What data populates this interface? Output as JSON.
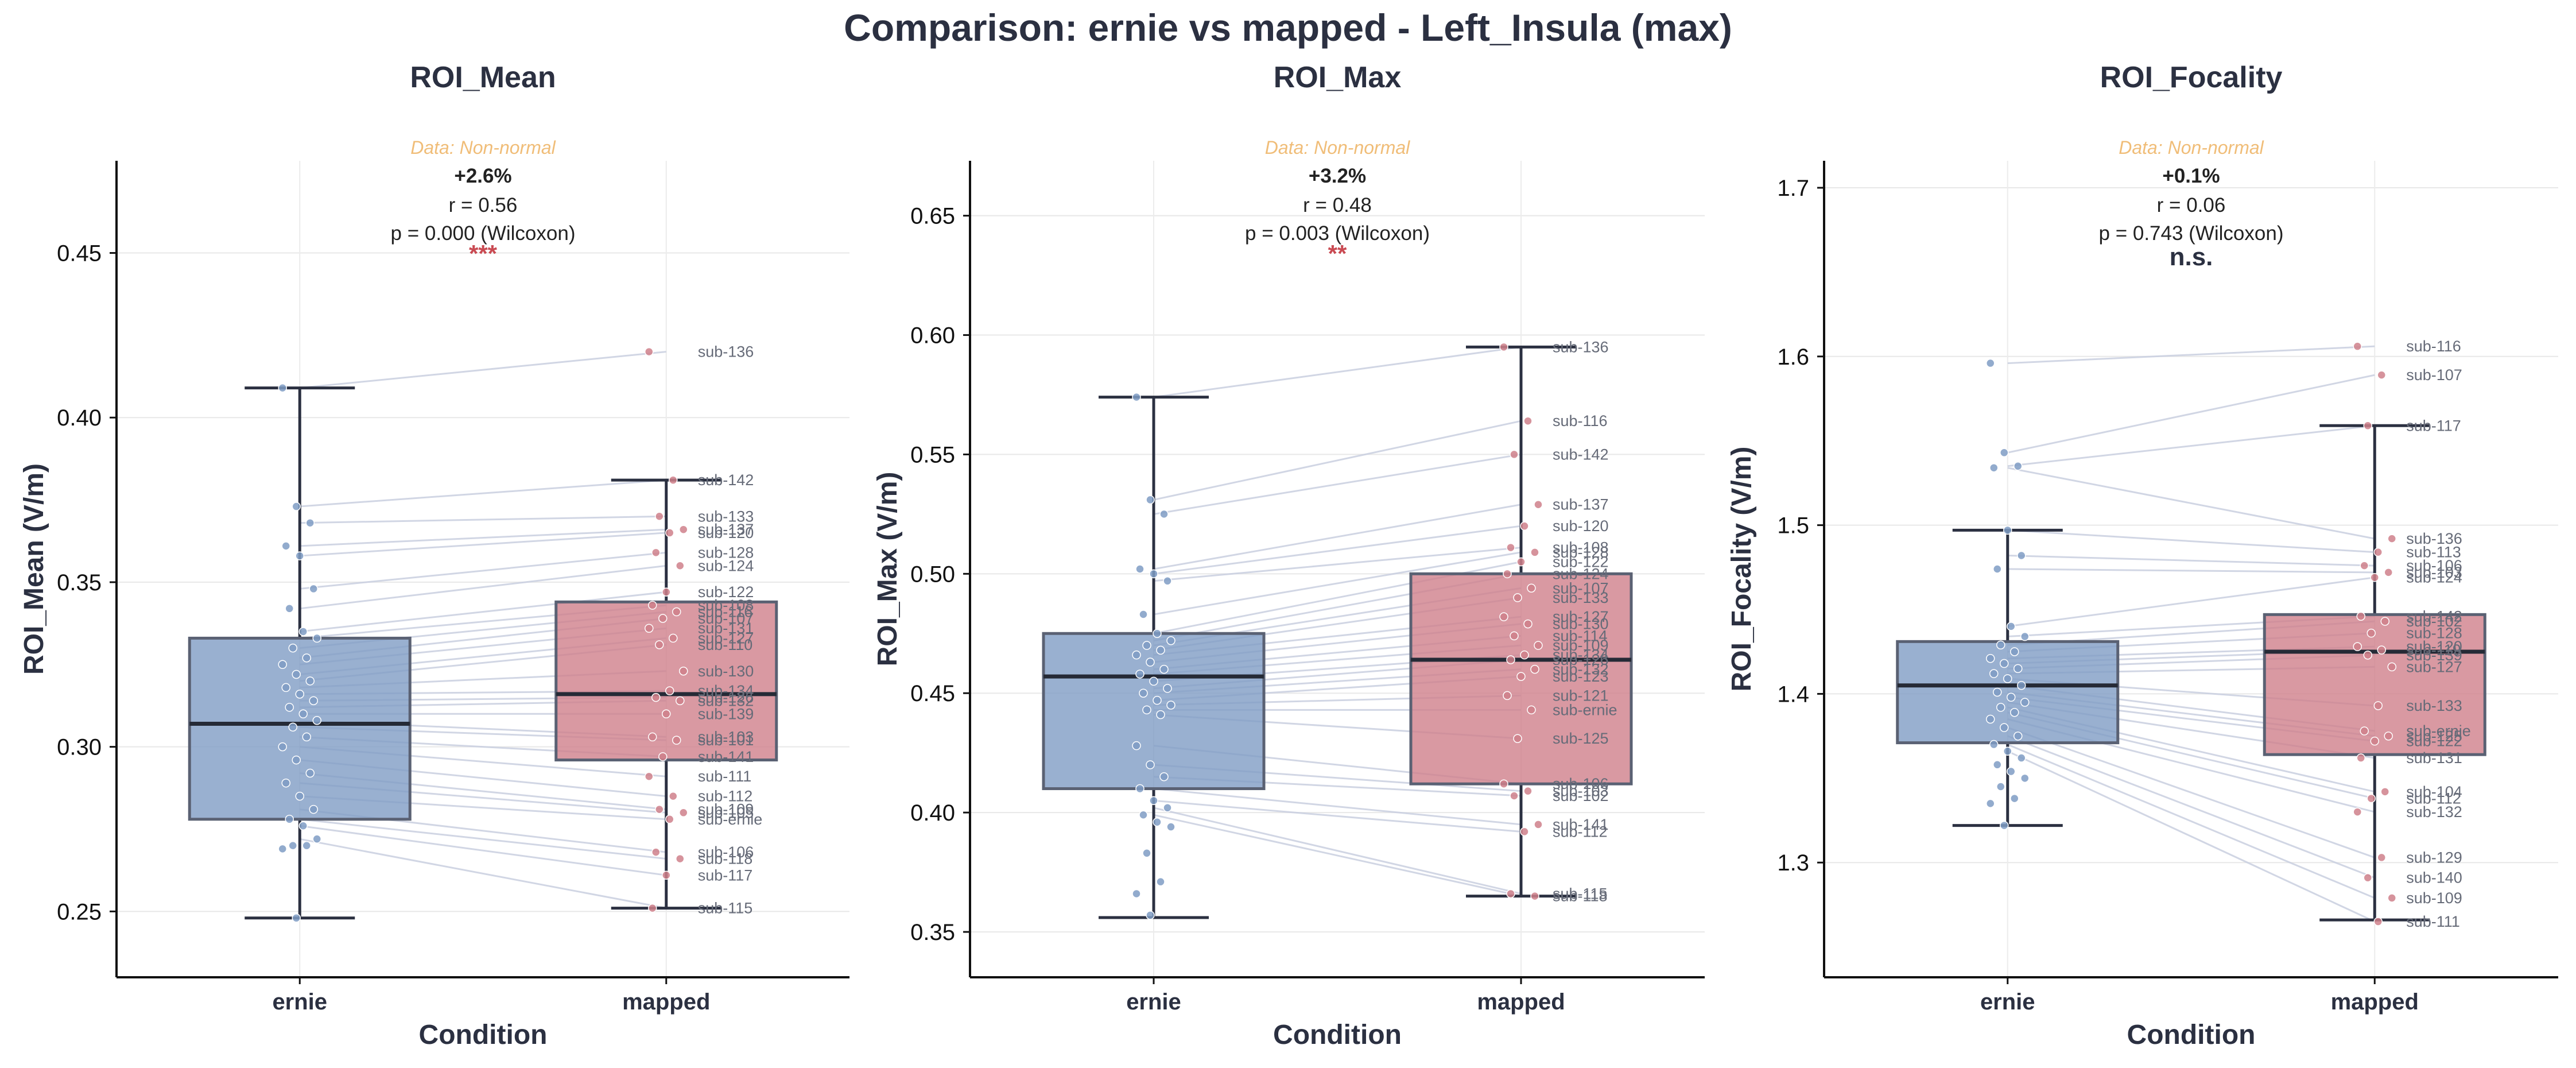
{
  "figure": {
    "title": "Comparison: ernie vs mapped - Left_Insula (max)"
  },
  "style": {
    "ernie_color": "#7f9cc4",
    "mapped_color": "#cf808b",
    "pair_line_color": "#c9cfe0",
    "normality_color": "#f0bd78",
    "significance_color": "#c94a52",
    "text_color": "#2b3041"
  },
  "chart_data": [
    {
      "type": "box",
      "title": "ROI_Mean",
      "xlabel": "Condition",
      "ylabel": "ROI_Mean (V/m)",
      "categories": [
        "ernie",
        "mapped"
      ],
      "ylim": [
        0.23,
        0.478
      ],
      "yticks": [
        0.25,
        0.3,
        0.35,
        0.4,
        0.45
      ],
      "ytick_labels": [
        "0.25",
        "0.30",
        "0.35",
        "0.40",
        "0.45"
      ],
      "grid": true,
      "stats": {
        "normality": "Data: Non-normal",
        "change": "+2.6%",
        "effect": "r = 0.56",
        "test": "p = 0.000 (Wilcoxon)",
        "significance": "***"
      },
      "boxes": [
        {
          "q1": 0.278,
          "median": 0.307,
          "q3": 0.333,
          "whisker_low": 0.248,
          "whisker_high": 0.409
        },
        {
          "q1": 0.296,
          "median": 0.316,
          "q3": 0.344,
          "whisker_low": 0.251,
          "whisker_high": 0.381
        }
      ],
      "ernie_values": [
        0.409,
        0.373,
        0.368,
        0.361,
        0.358,
        0.348,
        0.342,
        0.335,
        0.333,
        0.33,
        0.327,
        0.325,
        0.322,
        0.32,
        0.318,
        0.316,
        0.314,
        0.312,
        0.31,
        0.308,
        0.306,
        0.303,
        0.3,
        0.296,
        0.292,
        0.289,
        0.285,
        0.281,
        0.278,
        0.276,
        0.272,
        0.27,
        0.27,
        0.269,
        0.248
      ],
      "mapped_labels": [
        "sub-136",
        "sub-142",
        "sub-133",
        "sub-137",
        "sub-120",
        "sub-128",
        "sub-124",
        "sub-122",
        "sub-108",
        "sub-116",
        "sub-107",
        "sub-131",
        "sub-127",
        "sub-110",
        "sub-130",
        "sub-134",
        "sub-126",
        "sub-132",
        "sub-139",
        "sub-103",
        "sub-101",
        "sub-141",
        "sub-111",
        "sub-112",
        "sub-109",
        "sub-105",
        "sub-ernie",
        "sub-106",
        "sub-118",
        "sub-117",
        "sub-115"
      ],
      "mapped_values": [
        0.42,
        0.381,
        0.37,
        0.366,
        0.365,
        0.359,
        0.355,
        0.347,
        0.343,
        0.341,
        0.339,
        0.336,
        0.333,
        0.331,
        0.323,
        0.317,
        0.315,
        0.314,
        0.31,
        0.303,
        0.302,
        0.297,
        0.291,
        0.285,
        0.281,
        0.28,
        0.278,
        0.268,
        0.266,
        0.261,
        0.251
      ]
    },
    {
      "type": "box",
      "title": "ROI_Max",
      "xlabel": "Condition",
      "ylabel": "ROI_Max (V/m)",
      "categories": [
        "ernie",
        "mapped"
      ],
      "ylim": [
        0.331,
        0.673
      ],
      "yticks": [
        0.35,
        0.4,
        0.45,
        0.5,
        0.55,
        0.6,
        0.65
      ],
      "ytick_labels": [
        "0.35",
        "0.40",
        "0.45",
        "0.50",
        "0.55",
        "0.60",
        "0.65"
      ],
      "grid": true,
      "stats": {
        "normality": "Data: Non-normal",
        "change": "+3.2%",
        "effect": "r = 0.48",
        "test": "p = 0.003 (Wilcoxon)",
        "significance": "**"
      },
      "boxes": [
        {
          "q1": 0.41,
          "median": 0.457,
          "q3": 0.475,
          "whisker_low": 0.356,
          "whisker_high": 0.574
        },
        {
          "q1": 0.412,
          "median": 0.464,
          "q3": 0.5,
          "whisker_low": 0.365,
          "whisker_high": 0.595
        }
      ],
      "ernie_values": [
        0.574,
        0.531,
        0.525,
        0.502,
        0.5,
        0.497,
        0.483,
        0.475,
        0.472,
        0.47,
        0.468,
        0.466,
        0.463,
        0.46,
        0.458,
        0.455,
        0.452,
        0.45,
        0.447,
        0.445,
        0.443,
        0.441,
        0.428,
        0.42,
        0.415,
        0.41,
        0.405,
        0.402,
        0.399,
        0.396,
        0.394,
        0.383,
        0.371,
        0.366,
        0.357
      ],
      "mapped_labels": [
        "sub-136",
        "sub-116",
        "sub-142",
        "sub-137",
        "sub-120",
        "sub-108",
        "sub-128",
        "sub-122",
        "sub-124",
        "sub-107",
        "sub-133",
        "sub-127",
        "sub-130",
        "sub-114",
        "sub-109",
        "sub-134",
        "sub-126",
        "sub-132",
        "sub-123",
        "sub-121",
        "sub-ernie",
        "sub-125",
        "sub-106",
        "sub-103",
        "sub-102",
        "sub-141",
        "sub-112",
        "sub-115",
        "sub-118"
      ],
      "mapped_values": [
        0.595,
        0.564,
        0.55,
        0.529,
        0.52,
        0.511,
        0.509,
        0.505,
        0.5,
        0.494,
        0.49,
        0.482,
        0.479,
        0.474,
        0.47,
        0.466,
        0.464,
        0.46,
        0.457,
        0.449,
        0.443,
        0.431,
        0.412,
        0.409,
        0.407,
        0.395,
        0.392,
        0.366,
        0.365
      ]
    },
    {
      "type": "box",
      "title": "ROI_Focality",
      "xlabel": "Condition",
      "ylabel": "ROI_Focality (V/m)",
      "categories": [
        "ernie",
        "mapped"
      ],
      "ylim": [
        1.232,
        1.716
      ],
      "yticks": [
        1.3,
        1.4,
        1.5,
        1.6,
        1.7
      ],
      "ytick_labels": [
        "1.3",
        "1.4",
        "1.5",
        "1.6",
        "1.7"
      ],
      "grid": true,
      "stats": {
        "normality": "Data: Non-normal",
        "change": "+0.1%",
        "effect": "r = 0.06",
        "test": "p = 0.743 (Wilcoxon)",
        "significance": "n.s."
      },
      "boxes": [
        {
          "q1": 1.371,
          "median": 1.405,
          "q3": 1.431,
          "whisker_low": 1.322,
          "whisker_high": 1.497
        },
        {
          "q1": 1.364,
          "median": 1.425,
          "q3": 1.447,
          "whisker_low": 1.266,
          "whisker_high": 1.559
        }
      ],
      "ernie_values": [
        1.596,
        1.543,
        1.535,
        1.534,
        1.497,
        1.482,
        1.474,
        1.44,
        1.434,
        1.429,
        1.425,
        1.421,
        1.418,
        1.415,
        1.412,
        1.409,
        1.405,
        1.401,
        1.398,
        1.395,
        1.392,
        1.389,
        1.385,
        1.38,
        1.375,
        1.37,
        1.366,
        1.362,
        1.358,
        1.354,
        1.35,
        1.345,
        1.338,
        1.335,
        1.322
      ],
      "mapped_labels": [
        "sub-116",
        "sub-107",
        "sub-117",
        "sub-136",
        "sub-113",
        "sub-106",
        "sub-103",
        "sub-124",
        "sub-142",
        "sub-102",
        "sub-128",
        "sub-120",
        "sub-119",
        "sub-139",
        "sub-127",
        "sub-133",
        "sub-ernie",
        "sub-125",
        "sub-122",
        "sub-131",
        "sub-104",
        "sub-112",
        "sub-132",
        "sub-129",
        "sub-140",
        "sub-109",
        "sub-111"
      ],
      "mapped_values": [
        1.606,
        1.589,
        1.559,
        1.492,
        1.484,
        1.476,
        1.472,
        1.469,
        1.446,
        1.443,
        1.436,
        1.428,
        1.426,
        1.423,
        1.416,
        1.393,
        1.378,
        1.375,
        1.372,
        1.362,
        1.342,
        1.338,
        1.33,
        1.303,
        1.291,
        1.279,
        1.265
      ]
    }
  ]
}
